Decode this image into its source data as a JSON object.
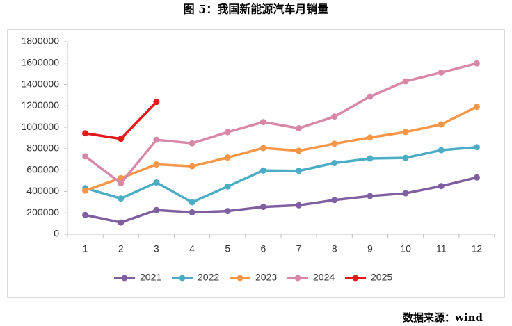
{
  "chart_data": {
    "type": "line",
    "title": "图 5：我国新能源汽车月销量",
    "source": "数据来源：wind",
    "categories": [
      "1",
      "2",
      "3",
      "4",
      "5",
      "6",
      "7",
      "8",
      "9",
      "10",
      "11",
      "12"
    ],
    "series": [
      {
        "name": "2021",
        "color": "#7f5fa0",
        "values": [
          180000,
          110000,
          226000,
          205000,
          217000,
          256000,
          271000,
          320000,
          357000,
          383000,
          450000,
          531000
        ]
      },
      {
        "name": "2022",
        "color": "#4bacc6",
        "values": [
          431000,
          334000,
          484000,
          299000,
          447000,
          596000,
          593000,
          666000,
          708000,
          714000,
          786000,
          814000
        ]
      },
      {
        "name": "2023",
        "color": "#f79646",
        "values": [
          408000,
          525000,
          653000,
          636000,
          717000,
          806000,
          780000,
          846000,
          904000,
          956000,
          1027000,
          1191000
        ]
      },
      {
        "name": "2024",
        "color": "#d987a8",
        "values": [
          729000,
          477000,
          883000,
          850000,
          955000,
          1049000,
          991000,
          1100000,
          1287000,
          1430000,
          1512000,
          1597000
        ]
      },
      {
        "name": "2025",
        "color": "#e31a1c",
        "values": [
          944000,
          892000,
          1237000,
          null,
          null,
          null,
          null,
          null,
          null,
          null,
          null,
          null
        ]
      }
    ],
    "ylim": [
      0,
      1800000
    ],
    "yticks": [
      0,
      200000,
      400000,
      600000,
      800000,
      1000000,
      1200000,
      1400000,
      1600000,
      1800000
    ],
    "grid": false,
    "legend": "bottom"
  }
}
